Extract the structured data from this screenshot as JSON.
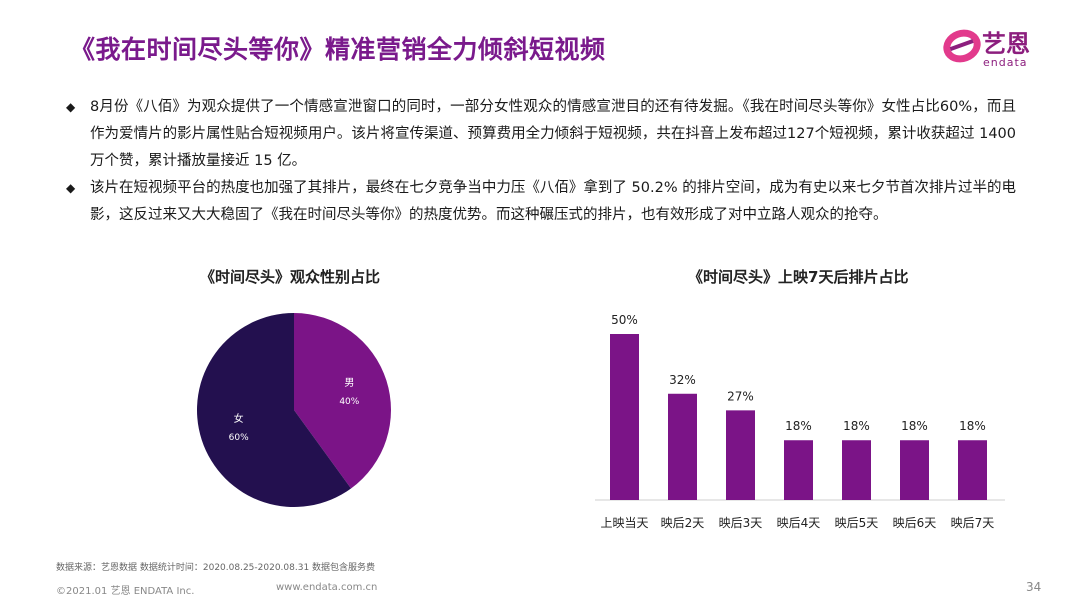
{
  "header": {
    "title": "《我在时间尽头等你》精准营销全力倾斜短视频",
    "logo_text": "艺恩",
    "logo_sub": "endata"
  },
  "bullets": [
    "8月份《八佰》为观众提供了一个情感宣泄窗口的同时，一部分女性观众的情感宣泄目的还有待发掘。《我在时间尽头等你》女性占比60%，而且作为爱情片的影片属性贴合短视频用户。该片将宣传渠道、预算费用全力倾斜于短视频，共在抖音上发布超过127个短视频，累计收获超过 1400 万个赞，累计播放量接近 15 亿。",
    "该片在短视频平台的热度也加强了其排片，最终在七夕竞争当中力压《八佰》拿到了 50.2% 的排片空间，成为有史以来七夕节首次排片过半的电影，这反过来又大大稳固了《我在时间尽头等你》的热度优势。而这种碾压式的排片，也有效形成了对中立路人观众的抢夺。"
  ],
  "footer": {
    "source": "数据来源：艺恩数据   数据统计时间：2020.08.25-2020.08.31 数据包含服务费",
    "copyright": "©2021.01 艺恩 ENDATA Inc.",
    "url": "www.endata.com.cn",
    "page": "34"
  },
  "colors": {
    "title": "#7a1a8c",
    "male": "#7b1487",
    "female": "#23104f",
    "bar": "#7b1487"
  },
  "chart_data": [
    {
      "type": "pie",
      "title": "《时间尽头》观众性别占比",
      "slices": [
        {
          "label": "男",
          "value": 40,
          "value_label": "40%",
          "color": "#7b1487"
        },
        {
          "label": "女",
          "value": 60,
          "value_label": "60%",
          "color": "#23104f"
        }
      ]
    },
    {
      "type": "bar",
      "title": "《时间尽头》上映7天后排片占比",
      "categories": [
        "上映当天",
        "映后2天",
        "映后3天",
        "映后4天",
        "映后5天",
        "映后6天",
        "映后7天"
      ],
      "values": [
        50,
        32,
        27,
        18,
        18,
        18,
        18
      ],
      "value_labels": [
        "50%",
        "32%",
        "27%",
        "18%",
        "18%",
        "18%",
        "18%"
      ],
      "ylim": [
        0,
        50
      ],
      "grid": false,
      "color": "#7b1487"
    }
  ]
}
